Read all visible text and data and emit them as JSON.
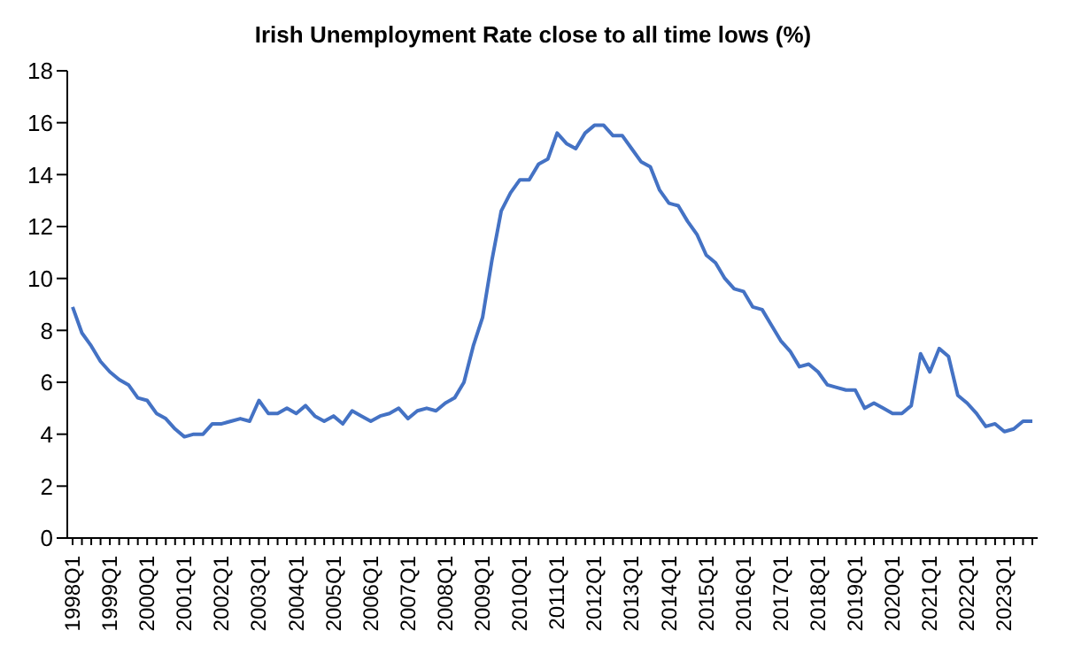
{
  "chart_data": {
    "type": "line",
    "title": "Irish Unemployment Rate close to all time lows (%)",
    "categories": [
      "1998Q1",
      null,
      null,
      null,
      "1999Q1",
      null,
      null,
      null,
      "2000Q1",
      null,
      null,
      null,
      "2001Q1",
      null,
      null,
      null,
      "2002Q1",
      null,
      null,
      null,
      "2003Q1",
      null,
      null,
      null,
      "2004Q1",
      null,
      null,
      null,
      "2005Q1",
      null,
      null,
      null,
      "2006Q1",
      null,
      null,
      null,
      "2007Q1",
      null,
      null,
      null,
      "2008Q1",
      null,
      null,
      null,
      "2009Q1",
      null,
      null,
      null,
      "2010Q1",
      null,
      null,
      null,
      "2011Q1",
      null,
      null,
      null,
      "2012Q1",
      null,
      null,
      null,
      "2013Q1",
      null,
      null,
      null,
      "2014Q1",
      null,
      null,
      null,
      "2015Q1",
      null,
      null,
      null,
      "2016Q1",
      null,
      null,
      null,
      "2017Q1",
      null,
      null,
      null,
      "2018Q1",
      null,
      null,
      null,
      "2019Q1",
      null,
      null,
      null,
      "2020Q1",
      null,
      null,
      null,
      "2021Q1",
      null,
      null,
      null,
      "2022Q1",
      null,
      null,
      null,
      "2023Q1",
      null,
      null,
      null
    ],
    "series": [
      {
        "color": "#4472c4",
        "values": [
          8.9,
          7.9,
          7.4,
          6.8,
          6.4,
          6.1,
          5.9,
          5.4,
          5.3,
          4.8,
          4.6,
          4.2,
          3.9,
          4.0,
          4.0,
          4.4,
          4.4,
          4.5,
          4.6,
          4.5,
          5.3,
          4.8,
          4.8,
          5.0,
          4.8,
          5.1,
          4.7,
          4.5,
          4.7,
          4.4,
          4.9,
          4.7,
          4.5,
          4.7,
          4.8,
          5.0,
          4.6,
          4.9,
          5.0,
          4.9,
          5.2,
          5.4,
          6.0,
          7.4,
          8.5,
          10.7,
          12.6,
          13.3,
          13.8,
          13.8,
          14.4,
          14.6,
          15.6,
          15.2,
          15.0,
          15.6,
          15.9,
          15.9,
          15.5,
          15.5,
          15.0,
          14.5,
          14.3,
          13.4,
          12.9,
          12.8,
          12.2,
          11.7,
          10.9,
          10.6,
          10.0,
          9.6,
          9.5,
          8.9,
          8.8,
          8.2,
          7.6,
          7.2,
          6.6,
          6.7,
          6.4,
          5.9,
          5.8,
          5.7,
          5.7,
          5.0,
          5.2,
          5.0,
          4.8,
          4.8,
          5.1,
          7.1,
          6.4,
          7.3,
          7.0,
          5.5,
          5.2,
          4.8,
          4.3,
          4.4,
          4.1,
          4.2,
          4.5,
          4.5
        ]
      }
    ],
    "ylim": [
      0,
      18
    ],
    "yticks": [
      0,
      2,
      4,
      6,
      8,
      10,
      12,
      14,
      16,
      18
    ],
    "grid": false,
    "legend": false,
    "marker": "none",
    "line_style": "solid"
  }
}
